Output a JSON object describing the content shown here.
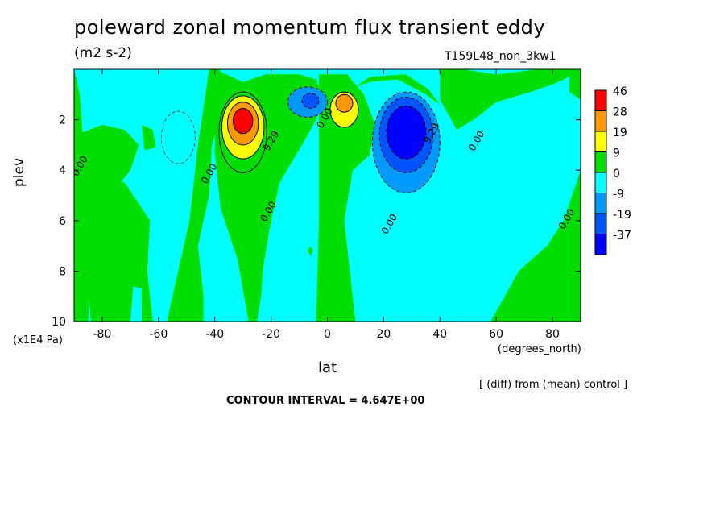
{
  "chart_data": {
    "type": "heatmap",
    "title": "poleward zonal momentum flux transient eddy",
    "units": "(m2 s-2)",
    "run_name": "T159L48_non_3kw1",
    "xlabel": "lat",
    "x_units": "(degrees_north)",
    "ylabel": "plev",
    "y_scale_note": "(x1E4 Pa)",
    "footnote": "[ (diff) from (mean) control ]",
    "contour_interval_text": "CONTOUR INTERVAL = 4.647E+00",
    "xlim": [
      -90,
      90
    ],
    "ylim": [
      10,
      0
    ],
    "x_ticks": [
      -80,
      -60,
      -40,
      -20,
      0,
      20,
      40,
      60,
      80
    ],
    "y_ticks": [
      2,
      4,
      6,
      8,
      10
    ],
    "colorbar": [
      {
        "label": "46",
        "color": "#ff0000"
      },
      {
        "label": "28",
        "color": "#ff9900"
      },
      {
        "label": "19",
        "color": "#ffff00"
      },
      {
        "label": "9",
        "color": "#00dd00"
      },
      {
        "label": "0",
        "color": "#00ffff"
      },
      {
        "label": "-9",
        "color": "#0099ff"
      },
      {
        "label": "-19",
        "color": "#0055ff"
      },
      {
        "label": "-37",
        "color": "#0000ff"
      }
    ],
    "field": {
      "background": "#00ffff",
      "features": [
        {
          "name": "southern positive maximum",
          "lat": -30,
          "plev": 2.2,
          "peak": 46
        },
        {
          "name": "northern positive maximum",
          "lat": 6,
          "plev": 1.3,
          "peak": 19
        },
        {
          "name": "northern negative minimum",
          "lat": 28,
          "plev": 2.5,
          "peak": -37
        },
        {
          "name": "equatorial negative minimum",
          "lat": -7,
          "plev": 1.3,
          "peak": -19
        }
      ]
    },
    "contour_labels": [
      {
        "text": "0.00",
        "lat": -87,
        "plev": 3.9
      },
      {
        "text": "0.00",
        "lat": -41,
        "plev": 4.2
      },
      {
        "text": "9.29",
        "lat": -19,
        "plev": 2.9
      },
      {
        "text": "0.00",
        "lat": -20,
        "plev": 5.7
      },
      {
        "text": "0.00",
        "lat": 0,
        "plev": 2.0
      },
      {
        "text": "9.29",
        "lat": 38,
        "plev": 2.6
      },
      {
        "text": "0.00",
        "lat": 54,
        "plev": 2.9
      },
      {
        "text": "0.00",
        "lat": 23,
        "plev": 6.2
      },
      {
        "text": "0.00",
        "lat": 86,
        "plev": 6.0
      }
    ]
  }
}
